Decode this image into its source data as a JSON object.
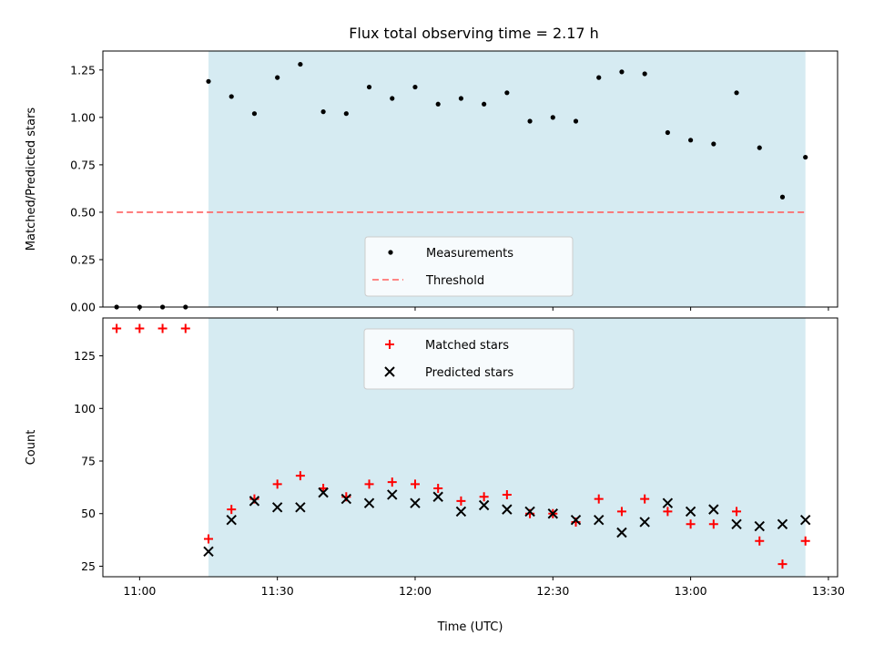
{
  "chart_data": [
    {
      "type": "scatter",
      "title": "Flux total observing time = 2.17 h",
      "xlabel": "",
      "ylabel": "Matched/Predicted stars",
      "ylim": [
        0,
        1.35
      ],
      "yticks": [
        "0.00",
        "0.25",
        "0.50",
        "0.75",
        "1.00",
        "1.25"
      ],
      "ytick_values": [
        0,
        0.25,
        0.5,
        0.75,
        1.0,
        1.25
      ],
      "xlim": [
        "10:52",
        "13:32"
      ],
      "highlight_span": [
        "11:15",
        "13:25"
      ],
      "highlight_color": "#add8e6",
      "legend": {
        "placement": "lower-center",
        "entries": [
          "Measurements",
          "Threshold"
        ]
      },
      "series": [
        {
          "name": "Measurements",
          "marker": "dot",
          "color": "#000000",
          "x": [
            "10:55",
            "11:00",
            "11:05",
            "11:10",
            "11:15",
            "11:20",
            "11:25",
            "11:30",
            "11:35",
            "11:40",
            "11:45",
            "11:50",
            "11:55",
            "12:00",
            "12:05",
            "12:10",
            "12:15",
            "12:20",
            "12:25",
            "12:30",
            "12:35",
            "12:40",
            "12:45",
            "12:50",
            "12:55",
            "13:00",
            "13:05",
            "13:10",
            "13:15",
            "13:20",
            "13:25"
          ],
          "y": [
            0,
            0,
            0,
            0,
            1.19,
            1.11,
            1.02,
            1.21,
            1.28,
            1.03,
            1.02,
            1.16,
            1.1,
            1.16,
            1.07,
            1.1,
            1.07,
            1.13,
            0.98,
            1.0,
            0.98,
            1.21,
            1.24,
            1.23,
            0.92,
            0.88,
            0.86,
            1.13,
            0.84,
            0.58,
            0.79
          ]
        },
        {
          "name": "Threshold",
          "style": "dashed",
          "color": "#ff6666",
          "x": [
            "10:55",
            "13:25"
          ],
          "y": [
            0.5,
            0.5
          ]
        }
      ]
    },
    {
      "type": "scatter",
      "title": "",
      "xlabel": "Time (UTC)",
      "ylabel": "Count",
      "ylim": [
        20,
        143
      ],
      "yticks": [
        "25",
        "50",
        "75",
        "100",
        "125"
      ],
      "ytick_values": [
        25,
        50,
        75,
        100,
        125
      ],
      "xlim": [
        "10:52",
        "13:32"
      ],
      "xticks": [
        "11:00",
        "11:30",
        "12:00",
        "12:30",
        "13:00",
        "13:30"
      ],
      "highlight_span": [
        "11:15",
        "13:25"
      ],
      "highlight_color": "#add8e6",
      "legend": {
        "placement": "upper-center",
        "entries": [
          "Matched stars",
          "Predicted stars"
        ]
      },
      "series": [
        {
          "name": "Matched stars",
          "marker": "plus",
          "color": "#ff0000",
          "x": [
            "10:55",
            "11:00",
            "11:05",
            "11:10",
            "11:15",
            "11:20",
            "11:25",
            "11:30",
            "11:35",
            "11:40",
            "11:45",
            "11:50",
            "11:55",
            "12:00",
            "12:05",
            "12:10",
            "12:15",
            "12:20",
            "12:25",
            "12:30",
            "12:35",
            "12:40",
            "12:45",
            "12:50",
            "12:55",
            "13:00",
            "13:05",
            "13:10",
            "13:15",
            "13:20",
            "13:25"
          ],
          "y": [
            138,
            138,
            138,
            138,
            38,
            52,
            57,
            64,
            68,
            62,
            58,
            64,
            65,
            64,
            62,
            56,
            58,
            59,
            50,
            50,
            46,
            57,
            51,
            57,
            51,
            45,
            45,
            51,
            37,
            26,
            37
          ]
        },
        {
          "name": "Predicted stars",
          "marker": "x",
          "color": "#000000",
          "x": [
            "11:15",
            "11:20",
            "11:25",
            "11:30",
            "11:35",
            "11:40",
            "11:45",
            "11:50",
            "11:55",
            "12:00",
            "12:05",
            "12:10",
            "12:15",
            "12:20",
            "12:25",
            "12:30",
            "12:35",
            "12:40",
            "12:45",
            "12:50",
            "12:55",
            "13:00",
            "13:05",
            "13:10",
            "13:15",
            "13:20",
            "13:25"
          ],
          "y": [
            32,
            47,
            56,
            53,
            53,
            60,
            57,
            55,
            59,
            55,
            58,
            51,
            54,
            52,
            51,
            50,
            47,
            47,
            41,
            46,
            55,
            51,
            52,
            45,
            44,
            45,
            47
          ]
        }
      ]
    }
  ]
}
